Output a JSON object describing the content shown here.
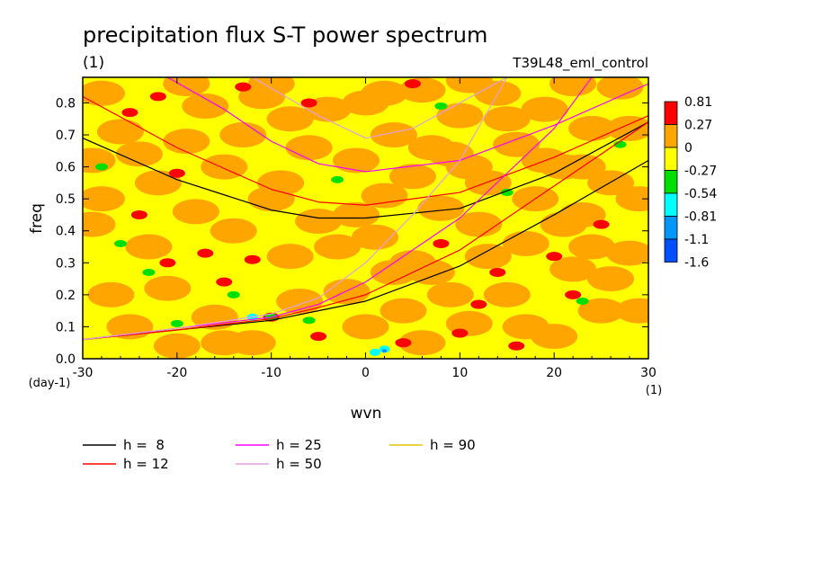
{
  "chart_data": {
    "type": "heatmap",
    "title": "precipitation flux S-T power spectrum",
    "units_label": "(1)",
    "run_label": "T39L48_eml_control",
    "xlabel": "wvn",
    "ylabel": "freq",
    "x_unit_label": "(1)",
    "y_unit_label": "(day-1)",
    "xlim": [
      -30,
      30
    ],
    "ylim": [
      0,
      0.88
    ],
    "x_ticks": [
      -30,
      -20,
      -10,
      0,
      10,
      20,
      30
    ],
    "y_ticks": [
      0.0,
      0.1,
      0.2,
      0.3,
      0.4,
      0.5,
      0.6,
      0.7,
      0.8
    ],
    "x_tick_labels": [
      "-30",
      "-20",
      "-10",
      "0",
      "10",
      "20",
      "30"
    ],
    "y_tick_labels": [
      "0.0",
      "0.1",
      "0.2",
      "0.3",
      "0.4",
      "0.5",
      "0.6",
      "0.7",
      "0.8"
    ],
    "colorbar": {
      "labels": [
        "0.81",
        "0.27",
        "0",
        "-0.27",
        "-0.54",
        "-0.81",
        "-1.1",
        "-1.6"
      ],
      "colors": [
        "#ff0000",
        "#ffa500",
        "#ffff00",
        "#00e000",
        "#00ffff",
        "#0096ff",
        "#0050ff"
      ]
    },
    "background_colors": {
      "dominant": "#ffff00",
      "secondary": "#ffa500"
    },
    "dispersion_curves": [
      {
        "label": "h =  8",
        "color": "#000000"
      },
      {
        "label": "h = 12",
        "color": "#ff0000"
      },
      {
        "label": "h = 25",
        "color": "#ff00ff"
      },
      {
        "label": "h = 50",
        "color": "#e0a0e0"
      },
      {
        "label": "h = 90",
        "color": "#e8c000"
      }
    ],
    "curve_data": {
      "h8_upper": {
        "x": [
          -30,
          -20,
          -10,
          -5,
          0,
          10,
          20,
          30
        ],
        "y": [
          0.69,
          0.56,
          0.465,
          0.44,
          0.44,
          0.47,
          0.58,
          0.74
        ]
      },
      "h8_lower": {
        "x": [
          -30,
          -20,
          -10,
          -5,
          0,
          10,
          20,
          30
        ],
        "y": [
          0.06,
          0.09,
          0.12,
          0.15,
          0.18,
          0.29,
          0.45,
          0.62
        ]
      },
      "h12_upper": {
        "x": [
          -30,
          -20,
          -10,
          -5,
          0,
          10,
          20,
          30
        ],
        "y": [
          0.82,
          0.66,
          0.53,
          0.49,
          0.48,
          0.52,
          0.63,
          0.76
        ]
      },
      "h12_lower": {
        "x": [
          -30,
          -20,
          -10,
          -5,
          0,
          10,
          20,
          30
        ],
        "y": [
          0.06,
          0.09,
          0.125,
          0.16,
          0.2,
          0.34,
          0.54,
          0.74
        ]
      },
      "h25_upper": {
        "x": [
          -21,
          -15,
          -10,
          -5,
          0,
          10,
          20,
          30
        ],
        "y": [
          0.88,
          0.78,
          0.68,
          0.61,
          0.585,
          0.62,
          0.73,
          0.86
        ]
      },
      "h25_lower": {
        "x": [
          -30,
          -20,
          -10,
          -5,
          0,
          10,
          20,
          24
        ],
        "y": [
          0.06,
          0.095,
          0.13,
          0.17,
          0.24,
          0.44,
          0.72,
          0.88
        ]
      },
      "h50_upper": {
        "x": [
          -12,
          -5,
          0,
          5,
          10,
          15
        ],
        "y": [
          0.88,
          0.76,
          0.69,
          0.72,
          0.8,
          0.88
        ]
      },
      "h50_lower": {
        "x": [
          -30,
          -20,
          -10,
          -5,
          0,
          5,
          10,
          15
        ],
        "y": [
          0.06,
          0.095,
          0.14,
          0.19,
          0.3,
          0.45,
          0.62,
          0.88
        ]
      }
    },
    "field_points": {
      "red": [
        [
          -25,
          0.77
        ],
        [
          -22,
          0.82
        ],
        [
          -20,
          0.58
        ],
        [
          -24,
          0.45
        ],
        [
          -17,
          0.33
        ],
        [
          -12,
          0.31
        ],
        [
          -21,
          0.3
        ],
        [
          -15,
          0.24
        ],
        [
          -10,
          0.13
        ],
        [
          -5,
          0.07
        ],
        [
          4,
          0.05
        ],
        [
          10,
          0.08
        ],
        [
          -6,
          0.8
        ],
        [
          8,
          0.36
        ],
        [
          14,
          0.27
        ],
        [
          20,
          0.32
        ],
        [
          22,
          0.2
        ],
        [
          12,
          0.17
        ],
        [
          25,
          0.42
        ],
        [
          -13,
          0.85
        ],
        [
          5,
          0.86
        ],
        [
          16,
          0.04
        ]
      ],
      "green": [
        [
          -23,
          0.27
        ],
        [
          -14,
          0.2
        ],
        [
          -10,
          0.13
        ],
        [
          -20,
          0.11
        ],
        [
          -28,
          0.6
        ],
        [
          -6,
          0.12
        ],
        [
          15,
          0.52
        ],
        [
          23,
          0.18
        ],
        [
          8,
          0.79
        ],
        [
          27,
          0.67
        ],
        [
          -3,
          0.56
        ],
        [
          -26,
          0.36
        ]
      ],
      "cyan": [
        [
          2,
          0.03
        ],
        [
          -12,
          0.13
        ],
        [
          1,
          0.02
        ]
      ],
      "blue": [
        [
          2,
          0.025
        ]
      ],
      "orange": [
        [
          -28,
          0.83
        ],
        [
          -26,
          0.71
        ],
        [
          -24,
          0.64
        ],
        [
          -22,
          0.55
        ],
        [
          -19,
          0.68
        ],
        [
          -17,
          0.79
        ],
        [
          -15,
          0.6
        ],
        [
          -14,
          0.4
        ],
        [
          -13,
          0.7
        ],
        [
          -11,
          0.82
        ],
        [
          -9,
          0.55
        ],
        [
          -8,
          0.32
        ],
        [
          -6,
          0.66
        ],
        [
          -5,
          0.43
        ],
        [
          -4,
          0.78
        ],
        [
          -2,
          0.21
        ],
        [
          -1,
          0.62
        ],
        [
          0,
          0.8
        ],
        [
          1,
          0.38
        ],
        [
          2,
          0.51
        ],
        [
          3,
          0.7
        ],
        [
          4,
          0.15
        ],
        [
          5,
          0.57
        ],
        [
          6,
          0.84
        ],
        [
          7,
          0.27
        ],
        [
          8,
          0.47
        ],
        [
          9,
          0.64
        ],
        [
          10,
          0.76
        ],
        [
          11,
          0.11
        ],
        [
          12,
          0.42
        ],
        [
          13,
          0.55
        ],
        [
          14,
          0.83
        ],
        [
          15,
          0.2
        ],
        [
          16,
          0.67
        ],
        [
          17,
          0.36
        ],
        [
          18,
          0.5
        ],
        [
          19,
          0.78
        ],
        [
          20,
          0.07
        ],
        [
          21,
          0.6
        ],
        [
          22,
          0.28
        ],
        [
          23,
          0.45
        ],
        [
          24,
          0.72
        ],
        [
          25,
          0.15
        ],
        [
          26,
          0.55
        ],
        [
          27,
          0.85
        ],
        [
          28,
          0.33
        ],
        [
          29,
          0.5
        ],
        [
          -29,
          0.42
        ],
        [
          -27,
          0.2
        ],
        [
          -25,
          0.1
        ],
        [
          -23,
          0.35
        ],
        [
          -21,
          0.22
        ],
        [
          -18,
          0.46
        ],
        [
          -16,
          0.13
        ],
        [
          -12,
          0.05
        ],
        [
          -10,
          0.5
        ],
        [
          -7,
          0.18
        ],
        [
          -3,
          0.35
        ],
        [
          3,
          0.27
        ],
        [
          6,
          0.05
        ],
        [
          9,
          0.2
        ],
        [
          13,
          0.32
        ],
        [
          17,
          0.1
        ],
        [
          21,
          0.42
        ],
        [
          24,
          0.35
        ],
        [
          26,
          0.25
        ],
        [
          29,
          0.15
        ],
        [
          -29,
          0.62
        ],
        [
          -28,
          0.5
        ],
        [
          -20,
          0.04
        ],
        [
          -15,
          0.05
        ],
        [
          0,
          0.1
        ],
        [
          5,
          0.3
        ],
        [
          11,
          0.6
        ],
        [
          19,
          0.62
        ],
        [
          23,
          0.6
        ],
        [
          -8,
          0.75
        ],
        [
          -1,
          0.45
        ],
        [
          7,
          0.66
        ],
        [
          15,
          0.75
        ],
        [
          28,
          0.72
        ],
        [
          -19,
          0.86
        ],
        [
          -10,
          0.86
        ],
        [
          2,
          0.83
        ],
        [
          11,
          0.87
        ],
        [
          22,
          0.86
        ]
      ]
    }
  }
}
